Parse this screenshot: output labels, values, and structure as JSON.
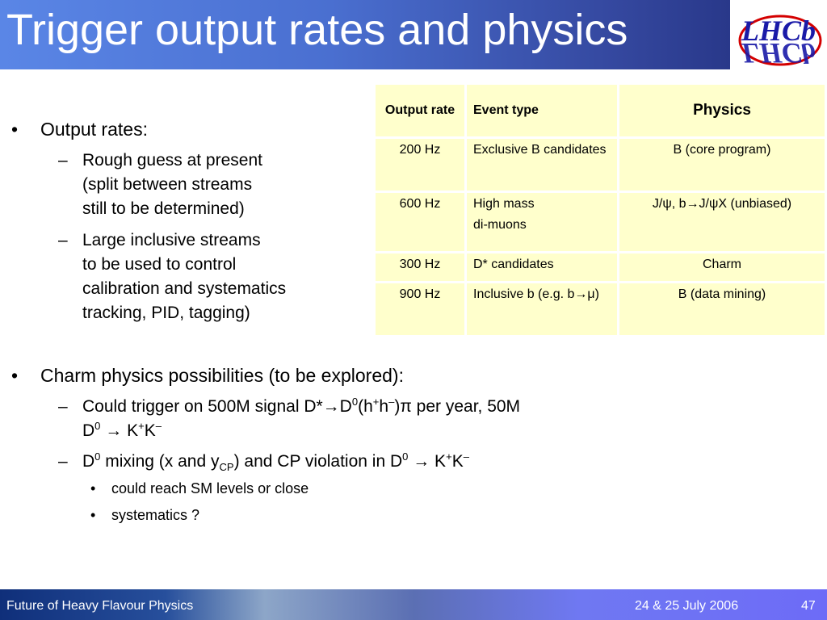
{
  "slide": {
    "title": "Trigger output rates and physics",
    "logo_text": "LHCb"
  },
  "bullets": {
    "output_rates": {
      "label": "Output rates:",
      "items": [
        {
          "lines": [
            "Rough guess at present",
            "(split between streams",
            "still to be determined)"
          ]
        },
        {
          "lines": [
            "Large inclusive streams",
            "to be used to control",
            "calibration and systematics",
            "tracking, PID, tagging)"
          ]
        }
      ]
    },
    "charm": {
      "label": "Charm physics possibilities (to be explored):",
      "item1_line1_pre": "Could trigger on 500M signal D*",
      "item1_line1_post": " per year, 50M",
      "item1_line2": "D",
      "item2_pre": "D",
      "item2_mid": " mixing (x and y",
      "item2_sub": "CP",
      "item2_post": ") and CP violation in D",
      "subitems": [
        "could reach SM levels or close",
        "systematics ?"
      ]
    }
  },
  "table": {
    "headers": [
      "Output rate",
      "Event type",
      "Physics"
    ],
    "rows": [
      {
        "rate": "200 Hz",
        "event": "Exclusive B candidates",
        "physics": "B (core program)"
      },
      {
        "rate": "600 Hz",
        "event_line1": "High mass",
        "event_line2": "di-muons",
        "physics": "J/ψ, b→J/ψX (unbiased)"
      },
      {
        "rate": "300 Hz",
        "event": "D* candidates",
        "physics": "Charm"
      },
      {
        "rate": "900 Hz",
        "event": "Inclusive b (e.g. b→μ)",
        "physics": "B (data mining)"
      }
    ]
  },
  "footer": {
    "left": "Future of Heavy Flavour Physics",
    "date": "24 & 25 July 2006",
    "page": "47"
  },
  "colors": {
    "header_blue": "#4a6fd0",
    "table_fill": "#ffffcc",
    "logo_red": "#d40000",
    "logo_blue": "#1a1aa8"
  }
}
